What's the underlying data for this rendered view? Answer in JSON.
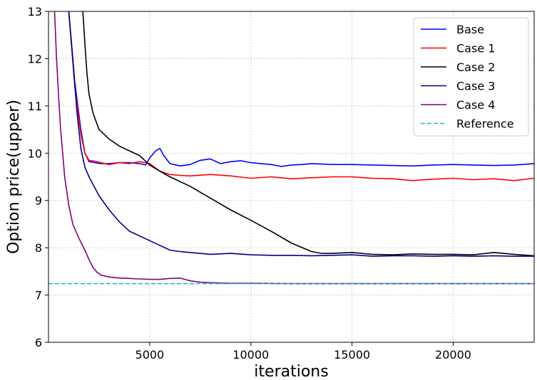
{
  "chart_data": {
    "type": "line",
    "title": "",
    "xlabel": "iterations",
    "ylabel": "Option price(upper)",
    "xlim": [
      0,
      24000
    ],
    "ylim": [
      6,
      13
    ],
    "xticks": [
      5000,
      10000,
      15000,
      20000
    ],
    "xtick_labels": [
      "5000",
      "10000",
      "15000",
      "20000"
    ],
    "yticks": [
      6,
      7,
      8,
      9,
      10,
      11,
      12,
      13
    ],
    "ytick_labels": [
      "6",
      "7",
      "8",
      "9",
      "10",
      "11",
      "12",
      "13"
    ],
    "grid": true,
    "legend_position": "top-right",
    "series": [
      {
        "name": "Base",
        "color": "#0000ff",
        "style": "solid",
        "x": [
          1000,
          1300,
          1600,
          1800,
          2000,
          2300,
          2600,
          3000,
          3500,
          4000,
          4500,
          4800,
          5000,
          5300,
          5500,
          5700,
          6000,
          6500,
          7000,
          7500,
          8000,
          8500,
          9000,
          9500,
          10000,
          10500,
          11000,
          11500,
          12000,
          12500,
          13000,
          14000,
          15000,
          16000,
          17000,
          18000,
          19000,
          20000,
          21000,
          22000,
          23000,
          24000
        ],
        "values": [
          13.0,
          11.5,
          10.5,
          10.0,
          9.82,
          9.8,
          9.78,
          9.78,
          9.8,
          9.8,
          9.78,
          9.75,
          9.9,
          10.05,
          10.1,
          9.95,
          9.78,
          9.73,
          9.76,
          9.85,
          9.88,
          9.78,
          9.82,
          9.84,
          9.8,
          9.78,
          9.76,
          9.72,
          9.75,
          9.76,
          9.78,
          9.76,
          9.76,
          9.75,
          9.74,
          9.73,
          9.75,
          9.76,
          9.75,
          9.74,
          9.75,
          9.78
        ]
      },
      {
        "name": "Case 1",
        "color": "#ff0000",
        "style": "solid",
        "x": [
          1000,
          1300,
          1600,
          1800,
          2000,
          2300,
          2600,
          3000,
          3500,
          4000,
          4500,
          5000,
          5500,
          6000,
          6500,
          7000,
          8000,
          9000,
          10000,
          11000,
          12000,
          13000,
          14000,
          15000,
          16000,
          17000,
          18000,
          19000,
          20000,
          21000,
          22000,
          23000,
          24000
        ],
        "values": [
          13.0,
          11.4,
          10.4,
          10.0,
          9.85,
          9.83,
          9.8,
          9.76,
          9.8,
          9.78,
          9.82,
          9.78,
          9.62,
          9.55,
          9.53,
          9.52,
          9.55,
          9.52,
          9.47,
          9.5,
          9.46,
          9.48,
          9.5,
          9.5,
          9.47,
          9.46,
          9.42,
          9.45,
          9.47,
          9.44,
          9.46,
          9.42,
          9.47
        ]
      },
      {
        "name": "Case 2",
        "color": "#000000",
        "style": "solid",
        "x": [
          1700,
          1800,
          1900,
          2000,
          2200,
          2500,
          3000,
          3500,
          4000,
          4500,
          5000,
          5500,
          6000,
          7000,
          8000,
          9000,
          10000,
          11000,
          12000,
          13000,
          13500,
          14000,
          15000,
          16000,
          17000,
          18000,
          19000,
          20000,
          21000,
          22000,
          23000,
          24000
        ],
        "values": [
          13.0,
          12.3,
          11.7,
          11.25,
          10.85,
          10.5,
          10.3,
          10.15,
          10.05,
          9.95,
          9.75,
          9.62,
          9.5,
          9.3,
          9.05,
          8.8,
          8.58,
          8.35,
          8.1,
          7.92,
          7.88,
          7.88,
          7.9,
          7.86,
          7.85,
          7.87,
          7.86,
          7.86,
          7.85,
          7.9,
          7.86,
          7.83
        ]
      },
      {
        "name": "Case 3",
        "color": "#00008b",
        "style": "solid",
        "x": [
          1000,
          1200,
          1400,
          1600,
          1800,
          2000,
          2500,
          3000,
          3500,
          4000,
          4500,
          5000,
          5500,
          6000,
          6500,
          7000,
          7500,
          8000,
          9000,
          10000,
          11000,
          12000,
          13000,
          14000,
          15000,
          16000,
          17000,
          18000,
          19000,
          20000,
          21000,
          22000,
          23000,
          24000
        ],
        "values": [
          13.0,
          12.0,
          10.9,
          10.1,
          9.7,
          9.5,
          9.1,
          8.8,
          8.55,
          8.35,
          8.25,
          8.15,
          8.05,
          7.95,
          7.92,
          7.9,
          7.88,
          7.86,
          7.88,
          7.85,
          7.84,
          7.84,
          7.83,
          7.84,
          7.85,
          7.82,
          7.83,
          7.83,
          7.82,
          7.83,
          7.82,
          7.83,
          7.82,
          7.82
        ]
      },
      {
        "name": "Case 4",
        "color": "#800080",
        "style": "solid",
        "x": [
          300,
          400,
          500,
          600,
          700,
          800,
          1000,
          1200,
          1500,
          1800,
          2000,
          2200,
          2400,
          2600,
          3000,
          3500,
          4000,
          4500,
          5000,
          5500,
          6000,
          6500,
          7000,
          7500,
          8000,
          9000,
          10000,
          12000,
          14000,
          16000,
          18000,
          20000,
          22000,
          24000
        ],
        "values": [
          13.0,
          12.0,
          11.2,
          10.5,
          10.0,
          9.5,
          8.9,
          8.5,
          8.2,
          7.95,
          7.75,
          7.58,
          7.48,
          7.42,
          7.38,
          7.36,
          7.35,
          7.34,
          7.33,
          7.33,
          7.35,
          7.36,
          7.3,
          7.27,
          7.26,
          7.25,
          7.25,
          7.24,
          7.24,
          7.24,
          7.24,
          7.24,
          7.24,
          7.24
        ]
      },
      {
        "name": "Reference",
        "color": "#17becf",
        "style": "dashed",
        "x": [
          0,
          24000
        ],
        "values": [
          7.24,
          7.24
        ]
      }
    ]
  }
}
